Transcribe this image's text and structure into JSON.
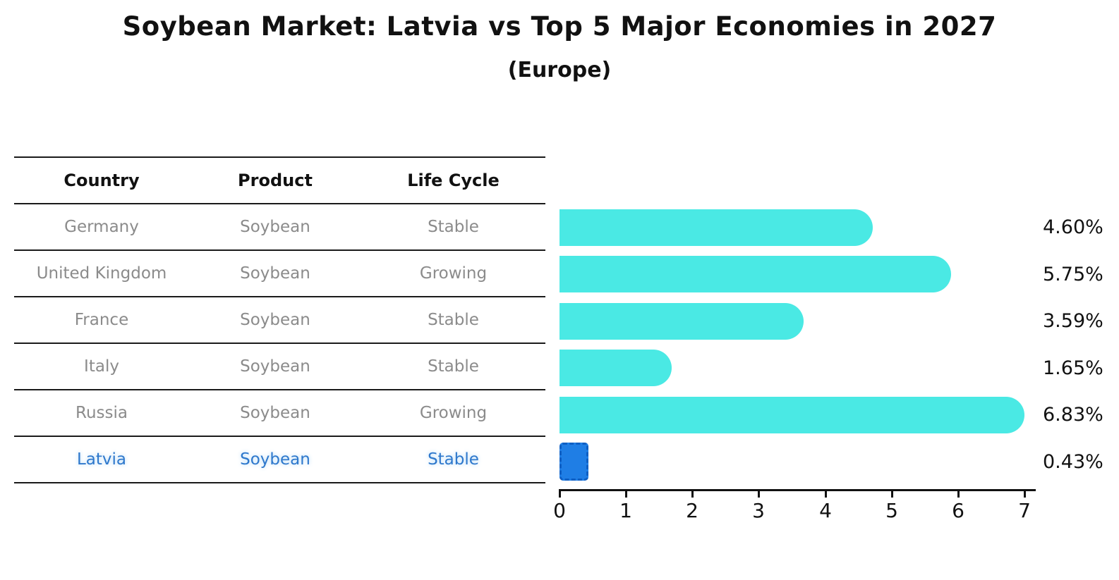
{
  "header": {
    "title": "Soybean Market: Latvia vs Top 5 Major Economies in 2027",
    "subtitle": "(Europe)"
  },
  "table": {
    "columns": [
      "Country",
      "Product",
      "Life Cycle"
    ],
    "rows": [
      {
        "country": "Germany",
        "product": "Soybean",
        "life_cycle": "Stable",
        "highlight": false
      },
      {
        "country": "United Kingdom",
        "product": "Soybean",
        "life_cycle": "Growing",
        "highlight": false
      },
      {
        "country": "France",
        "product": "Soybean",
        "life_cycle": "Stable",
        "highlight": false
      },
      {
        "country": "Italy",
        "product": "Soybean",
        "life_cycle": "Stable",
        "highlight": false
      },
      {
        "country": "Russia",
        "product": "Soybean",
        "life_cycle": "Growing",
        "highlight": false
      },
      {
        "country": "Latvia",
        "product": "Soybean",
        "life_cycle": "Stable",
        "highlight": true
      }
    ]
  },
  "chart_data": {
    "type": "bar",
    "orientation": "horizontal",
    "title": "Soybean Market: Latvia vs Top 5 Major Economies in 2027",
    "subtitle": "(Europe)",
    "categories": [
      "Germany",
      "United Kingdom",
      "France",
      "Italy",
      "Russia",
      "Latvia"
    ],
    "values": [
      4.6,
      5.75,
      3.59,
      1.65,
      6.83,
      0.43
    ],
    "labels": [
      "4.60%",
      "5.75%",
      "3.59%",
      "1.65%",
      "6.83%",
      "0.43%"
    ],
    "x_ticks": [
      "0",
      "1",
      "2",
      "3",
      "4",
      "5",
      "6",
      "7"
    ],
    "xlim": [
      0,
      7
    ],
    "grid": false,
    "legend": false,
    "bar_color": "#4ae9e4",
    "highlight_color": "#1f7ee5",
    "highlight_index": 5
  }
}
